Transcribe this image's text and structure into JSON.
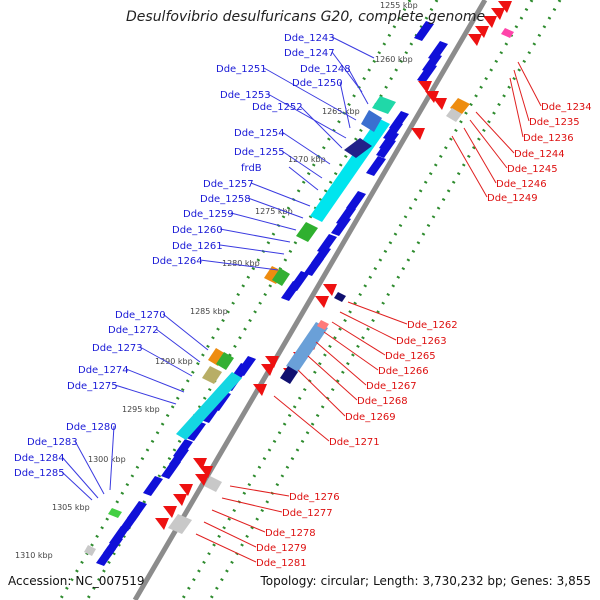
{
  "title": "Desulfovibrio desulfuricans G20, complete genome",
  "footer": {
    "accession_label": "Accession:",
    "accession": "NC_007519",
    "topology_label": "Topology:",
    "topology": "circular;",
    "length_label": "Length:",
    "length": "3,730,232 bp;",
    "genes_label": "Genes:",
    "genes": "3,855"
  },
  "colors": {
    "left_labels": "#1a1ad6",
    "right_labels": "#dd1111",
    "backbone": "#8c8c8c",
    "kbp_tick": "#2a8a2a"
  },
  "kbp_ticks": [
    "1255 kbp",
    "1260 kbp",
    "1265 kbp",
    "1270 kbp",
    "1275 kbp",
    "1280 kbp",
    "1285 kbp",
    "1290 kbp",
    "1295 kbp",
    "1300 kbp",
    "1305 kbp",
    "1310 kbp"
  ],
  "left_genes": [
    "Dde_1243",
    "Dde_1247",
    "Dde_1248",
    "Dde_1251",
    "Dde_1250",
    "Dde_1253",
    "Dde_1252",
    "Dde_1254",
    "Dde_1255",
    "frdB",
    "Dde_1257",
    "Dde_1258",
    "Dde_1259",
    "Dde_1260",
    "Dde_1261",
    "Dde_1264",
    "Dde_1270",
    "Dde_1272",
    "Dde_1273",
    "Dde_1274",
    "Dde_1275",
    "Dde_1280",
    "Dde_1283",
    "Dde_1284",
    "Dde_1285"
  ],
  "right_genes": [
    "Dde_1234",
    "Dde_1235",
    "Dde_1236",
    "Dde_1244",
    "Dde_1245",
    "Dde_1246",
    "Dde_1249",
    "Dde_1262",
    "Dde_1263",
    "Dde_1265",
    "Dde_1266",
    "Dde_1267",
    "Dde_1268",
    "Dde_1269",
    "Dde_1271",
    "Dde_1276",
    "Dde_1277",
    "Dde_1278",
    "Dde_1279",
    "Dde_1281"
  ]
}
